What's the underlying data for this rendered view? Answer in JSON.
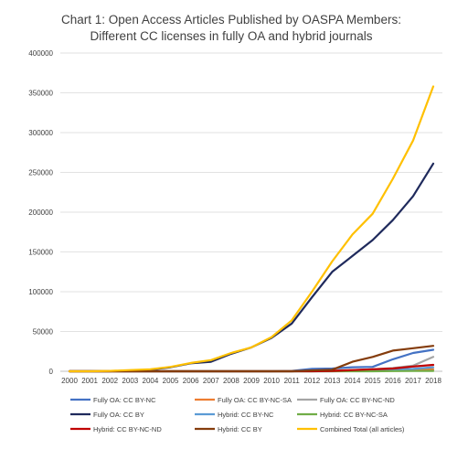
{
  "chart_data": {
    "type": "line",
    "title_lines": [
      "Chart 1: Open Access Articles Published by OASPA Members:",
      "Different CC licenses in fully OA and hybrid journals"
    ],
    "xlabel": "",
    "ylabel": "",
    "ylim": [
      0,
      400000
    ],
    "y_ticks": [
      0,
      50000,
      100000,
      150000,
      200000,
      250000,
      300000,
      350000,
      400000
    ],
    "y_tick_labels": [
      "0",
      "50000",
      "100000",
      "150000",
      "200000",
      "250000",
      "300000",
      "350000",
      "400000"
    ],
    "grid": "horizontal",
    "legend_position": "bottom",
    "categories": [
      "2000",
      "2001",
      "2002",
      "2003",
      "2004",
      "2005",
      "2006",
      "2007",
      "2008",
      "2009",
      "2010",
      "2011",
      "2012",
      "2013",
      "2014",
      "2015",
      "2016",
      "2017",
      "2018"
    ],
    "series": [
      {
        "name": "Fully OA: CC BY-NC",
        "color": "#4472C4",
        "values": [
          0,
          0,
          0,
          0,
          0,
          0,
          0,
          0,
          0,
          0,
          0,
          500,
          3000,
          3500,
          5000,
          5500,
          15000,
          23000,
          27000
        ]
      },
      {
        "name": "Fully OA: CC BY-NC-SA",
        "color": "#ED7D31",
        "values": [
          0,
          0,
          0,
          0,
          0,
          0,
          0,
          0,
          0,
          0,
          0,
          0,
          500,
          800,
          1000,
          1200,
          1500,
          2000,
          2500
        ]
      },
      {
        "name": "Fully OA: CC BY-NC-ND",
        "color": "#A5A5A5",
        "values": [
          0,
          0,
          0,
          0,
          0,
          0,
          0,
          0,
          0,
          0,
          0,
          0,
          500,
          1000,
          1500,
          2500,
          4000,
          7000,
          18000
        ]
      },
      {
        "name": "Fully OA: CC BY",
        "color": "#1F2A5C",
        "values": [
          0,
          0,
          0,
          1000,
          2000,
          5000,
          10000,
          12000,
          22000,
          30000,
          42000,
          60000,
          93000,
          125000,
          145000,
          165000,
          190000,
          220000,
          261000
        ]
      },
      {
        "name": "Hybrid: CC BY-NC",
        "color": "#5B9BD5",
        "values": [
          0,
          0,
          0,
          0,
          0,
          0,
          0,
          0,
          0,
          0,
          0,
          0,
          0,
          0,
          500,
          1000,
          2000,
          3000,
          5000
        ]
      },
      {
        "name": "Hybrid: CC BY-NC-SA",
        "color": "#70AD47",
        "values": [
          0,
          0,
          0,
          0,
          0,
          0,
          0,
          0,
          0,
          0,
          0,
          0,
          0,
          0,
          0,
          0,
          200,
          300,
          500
        ]
      },
      {
        "name": "Hybrid: CC BY-NC-ND",
        "color": "#C00000",
        "values": [
          0,
          0,
          0,
          0,
          0,
          0,
          0,
          0,
          0,
          0,
          0,
          0,
          0,
          500,
          1500,
          2500,
          3500,
          6000,
          8000
        ]
      },
      {
        "name": "Hybrid: CC BY",
        "color": "#843C0C",
        "values": [
          0,
          0,
          0,
          0,
          0,
          0,
          0,
          0,
          0,
          0,
          0,
          0,
          1000,
          2000,
          12000,
          18000,
          26000,
          29000,
          32000
        ]
      },
      {
        "name": "Combined Total (all articles)",
        "color": "#FFC000",
        "values": [
          0,
          0,
          500,
          1500,
          2500,
          5500,
          10500,
          14000,
          23000,
          30000,
          43000,
          64000,
          100000,
          138000,
          172000,
          198000,
          242000,
          290000,
          358000
        ]
      }
    ]
  }
}
